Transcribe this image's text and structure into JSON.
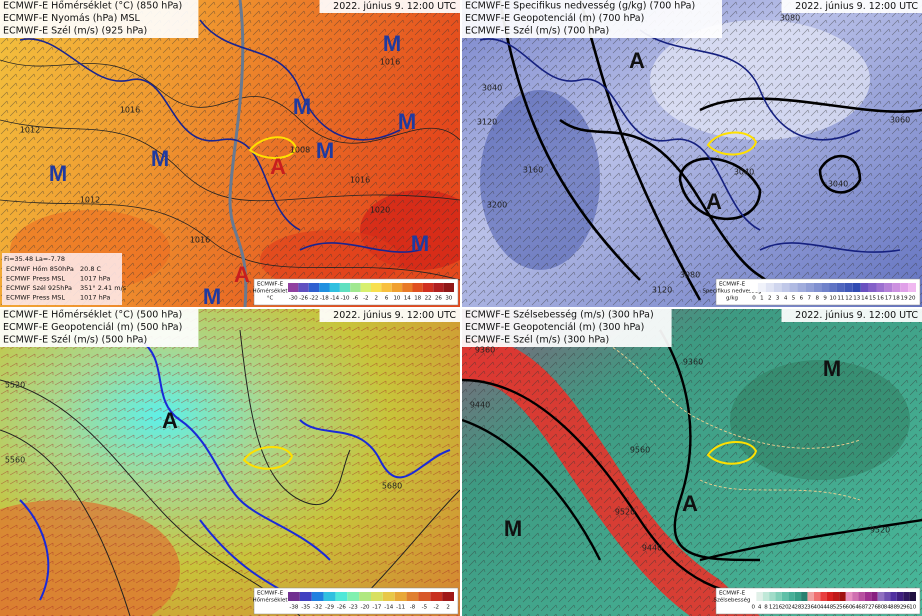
{
  "panels": [
    {
      "title_lines": [
        "ECMWF-E Hőmérséklet (°C) (850 hPa)",
        "ECMWF-E Nyomás (hPa) MSL",
        "ECMWF-E Szél (m/s) (925 hPa)"
      ],
      "date": "2022. június 9. 12:00 UTC",
      "markers": [
        {
          "label": "M",
          "color": "#1f3aa0"
        },
        {
          "label": "M",
          "color": "#1f3aa0"
        },
        {
          "label": "M",
          "color": "#1f3aa0"
        },
        {
          "label": "M",
          "color": "#1f3aa0"
        },
        {
          "label": "M",
          "color": "#1f3aa0"
        },
        {
          "label": "M",
          "color": "#1f3aa0"
        },
        {
          "label": "M",
          "color": "#1f3aa0"
        },
        {
          "label": "M",
          "color": "#1f3aa0"
        },
        {
          "label": "A",
          "color": "#c81e1e"
        },
        {
          "label": "A",
          "color": "#c81e1e"
        }
      ],
      "contour_labels": [
        "1016",
        "1012",
        "1016",
        "1016",
        "1020",
        "1008",
        "1016",
        "1012"
      ],
      "legend": {
        "title": [
          "ECMWF-E",
          "Hőmérséklet",
          "°C"
        ],
        "ticks": [
          "-30",
          "-26",
          "-22",
          "-18",
          "-14",
          "-10",
          "-6",
          "-2",
          "2",
          "6",
          "10",
          "14",
          "18",
          "22",
          "26",
          "30"
        ]
      },
      "info": {
        "coords": "Fi=35.48 La=-7.78",
        "rows": [
          [
            "ECMWF Hőm 850hPa",
            "20.8 C"
          ],
          [
            "ECMWF Press MSL",
            "1017 hPa"
          ],
          [
            "ECMWF Szél 925hPa",
            "351° 2.41 m/s"
          ],
          [
            "ECMWF Press MSL",
            "1017 hPa"
          ]
        ]
      }
    },
    {
      "title_lines": [
        "ECMWF-E Specifikus nedvesség (g/kg) (700 hPa)",
        "ECMWF-E Geopotenciál (m) (700 hPa)",
        "ECMWF-E Szél (m/s) (700 hPa)"
      ],
      "date": "2022. június 9. 12:00 UTC",
      "markers": [
        {
          "label": "A",
          "color": "#111111"
        },
        {
          "label": "A",
          "color": "#111111"
        }
      ],
      "contour_labels": [
        "3040",
        "3120",
        "3160",
        "3200",
        "3080",
        "3060",
        "3040",
        "3040",
        "3080",
        "3120"
      ],
      "legend": {
        "title": [
          "ECMWF-E",
          "Specifikus nedvesség",
          "g/kg"
        ],
        "ticks": [
          "0",
          "1",
          "2",
          "3",
          "4",
          "5",
          "6",
          "7",
          "8",
          "9",
          "10",
          "11",
          "12",
          "13",
          "14",
          "15",
          "16",
          "17",
          "18",
          "19",
          "20"
        ]
      }
    },
    {
      "title_lines": [
        "ECMWF-E Hőmérséklet (°C) (500 hPa)",
        "ECMWF-E Geopotenciál (m) (500 hPa)",
        "ECMWF-E Szél (m/s) (500 hPa)"
      ],
      "date": "2022. június 9. 12:00 UTC",
      "markers": [
        {
          "label": "A",
          "color": "#111111"
        }
      ],
      "contour_labels": [
        "5520",
        "5560",
        "5680"
      ],
      "legend": {
        "title": [
          "ECMWF-E",
          "Hőmérséklet"
        ],
        "ticks": [
          "-38",
          "-35",
          "-32",
          "-29",
          "-26",
          "-23",
          "-20",
          "-17",
          "-14",
          "-11",
          "-8",
          "-5",
          "-2",
          "2"
        ]
      }
    },
    {
      "title_lines": [
        "ECMWF-E Szélsebesség (m/s) (300 hPa)",
        "ECMWF-E Geopotenciál (m) (300 hPa)",
        "ECMWF-E Szél (m/s) (300 hPa)"
      ],
      "date": "2022. június 9. 12:00 UTC",
      "markers": [
        {
          "label": "M",
          "color": "#111111"
        },
        {
          "label": "A",
          "color": "#111111"
        },
        {
          "label": "M",
          "color": "#111111"
        }
      ],
      "contour_labels": [
        "9360",
        "9440",
        "9520",
        "9560",
        "9360",
        "9440",
        "9520"
      ],
      "legend": {
        "title": [
          "ECMWF-E",
          "Szélsebesség"
        ],
        "ticks": [
          "0",
          "4",
          "8",
          "12",
          "16",
          "20",
          "24",
          "28",
          "32",
          "36",
          "40",
          "44",
          "48",
          "52",
          "56",
          "60",
          "64",
          "68",
          "72",
          "76",
          "80",
          "84",
          "88",
          "92",
          "96",
          "10"
        ]
      }
    }
  ]
}
